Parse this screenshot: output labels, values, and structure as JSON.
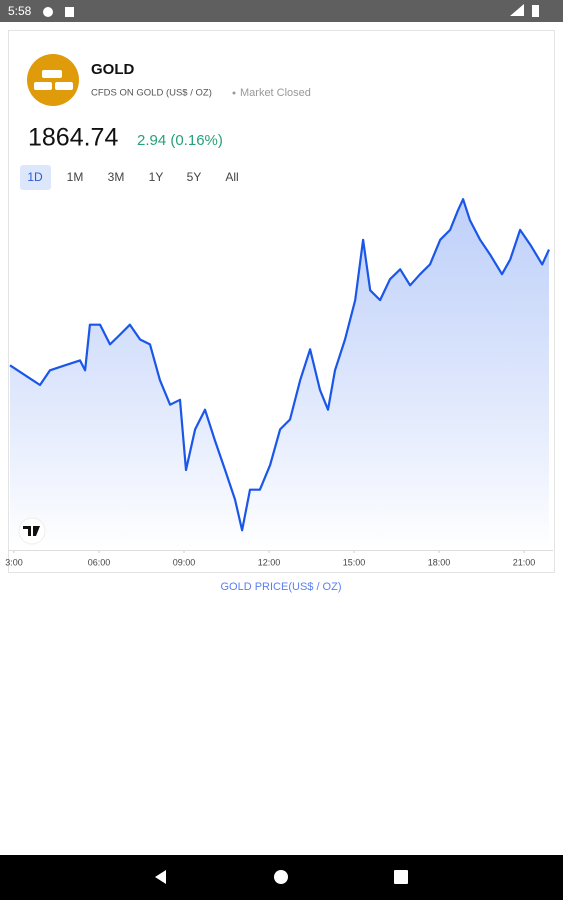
{
  "status_bar": {
    "time": "5:58"
  },
  "header": {
    "name": "GOLD",
    "subtitle": "CFDS ON GOLD (US$ / OZ)",
    "status": "Market Closed"
  },
  "quote": {
    "price": "1864.74",
    "change": "2.94 (0.16%)"
  },
  "tabs": [
    "1D",
    "1M",
    "3M",
    "1Y",
    "5Y",
    "All"
  ],
  "chart_data": {
    "type": "line",
    "series": [
      {
        "color": "#1a56e8",
        "x": [
          2.86,
          3.39,
          3.92,
          4.27,
          4.8,
          5.33,
          5.51,
          5.68,
          6.04,
          6.39,
          6.74,
          7.09,
          7.45,
          7.8,
          8.15,
          8.51,
          8.86,
          9.07,
          9.39,
          9.74,
          10.09,
          10.45,
          10.8,
          11.05,
          11.33,
          11.68,
          12.04,
          12.39,
          12.74,
          13.1,
          13.45,
          13.8,
          14.08,
          14.33,
          14.68,
          15.04,
          15.32,
          15.57,
          15.92,
          16.27,
          16.63,
          16.98,
          17.33,
          17.68,
          18.04,
          18.39,
          18.67,
          18.85,
          19.09,
          19.45,
          19.8,
          20.22,
          20.51,
          20.86,
          21.22,
          21.64,
          21.88
        ],
        "values": [
          1855.0,
          1854.2,
          1853.4,
          1854.6,
          1855.0,
          1855.4,
          1854.6,
          1858.3,
          1858.3,
          1856.7,
          1857.5,
          1858.3,
          1857.1,
          1856.7,
          1853.8,
          1851.8,
          1852.2,
          1846.5,
          1849.8,
          1851.4,
          1848.9,
          1846.5,
          1844.1,
          1841.6,
          1844.9,
          1844.9,
          1846.9,
          1849.8,
          1850.6,
          1853.8,
          1856.3,
          1853.0,
          1851.4,
          1854.6,
          1857.1,
          1860.3,
          1865.2,
          1861.1,
          1860.3,
          1862.0,
          1862.8,
          1861.5,
          1862.4,
          1863.2,
          1865.2,
          1866.0,
          1867.6,
          1868.5,
          1866.8,
          1865.2,
          1864.0,
          1862.4,
          1863.6,
          1866.0,
          1864.8,
          1863.2,
          1864.4
        ]
      }
    ],
    "xlim": [
      2.86,
      21.88
    ],
    "xticks": [
      {
        "value": 3,
        "label": "3:00"
      },
      {
        "value": 6,
        "label": "06:00"
      },
      {
        "value": 9,
        "label": "09:00"
      },
      {
        "value": 12,
        "label": "12:00"
      },
      {
        "value": 15,
        "label": "15:00"
      },
      {
        "value": 18,
        "label": "18:00"
      },
      {
        "value": 21,
        "label": "21:00"
      }
    ],
    "ylim": [
      1840,
      1869
    ],
    "caption": "GOLD PRICE(US$ / OZ)"
  }
}
